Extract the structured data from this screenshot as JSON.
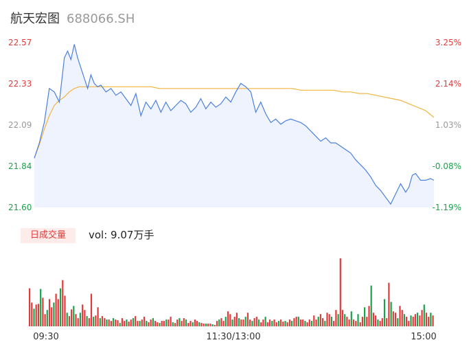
{
  "header": {
    "name": "航天宏图",
    "code": "688066.SH"
  },
  "volume": {
    "badge": "日成交量",
    "text": "vol: 9.07万手"
  },
  "colors": {
    "up": "#e23a3a",
    "down": "#1aa34a",
    "neutral": "#999999",
    "price_line": "#4a7fe0",
    "avg_line": "#f2b33d",
    "area": "#eef3fd"
  },
  "chart_data": [
    {
      "type": "line",
      "title": "",
      "y_ticks": [
        "22.57",
        "22.33",
        "22.09",
        "21.84",
        "21.60"
      ],
      "pct_ticks": [
        "3.25%",
        "2.14%",
        "1.03%",
        "-0.08%",
        "-1.19%"
      ],
      "tick_colors": [
        "up",
        "up",
        "neutral",
        "down",
        "down"
      ],
      "ylim": [
        21.6,
        22.57
      ],
      "x_ticks": [
        "09:30",
        "11:30/13:00",
        "15:00"
      ],
      "xlim": [
        0,
        240
      ],
      "series": [
        {
          "role": "price",
          "x": [
            0,
            3,
            6,
            9,
            12,
            15,
            18,
            20,
            22,
            24,
            26,
            28,
            30,
            32,
            34,
            36,
            38,
            40,
            43,
            46,
            49,
            52,
            55,
            58,
            61,
            64,
            67,
            70,
            73,
            76,
            79,
            82,
            85,
            88,
            91,
            94,
            97,
            100,
            103,
            106,
            109,
            112,
            115,
            118,
            121,
            124,
            127,
            130,
            133,
            136,
            139,
            142,
            145,
            148,
            151,
            154,
            157,
            160,
            163,
            166,
            169,
            172,
            175,
            178,
            181,
            184,
            187,
            190,
            193,
            196,
            199,
            202,
            205,
            208,
            211,
            214,
            217,
            220,
            223,
            225,
            227,
            229,
            232,
            235,
            238,
            240
          ],
          "values": [
            21.89,
            21.98,
            22.1,
            22.3,
            22.28,
            22.22,
            22.48,
            22.52,
            22.47,
            22.56,
            22.48,
            22.42,
            22.36,
            22.3,
            22.38,
            22.33,
            22.31,
            22.32,
            22.28,
            22.3,
            22.26,
            22.28,
            22.24,
            22.2,
            22.27,
            22.14,
            22.22,
            22.18,
            22.23,
            22.16,
            22.22,
            22.17,
            22.2,
            22.23,
            22.21,
            22.16,
            22.19,
            22.24,
            22.18,
            22.22,
            22.19,
            22.21,
            22.25,
            22.22,
            22.28,
            22.33,
            22.31,
            22.28,
            22.16,
            22.22,
            22.15,
            22.1,
            22.12,
            22.09,
            22.11,
            22.12,
            22.11,
            22.1,
            22.08,
            22.05,
            22.02,
            21.99,
            22.01,
            21.98,
            21.98,
            21.96,
            21.94,
            21.92,
            21.88,
            21.85,
            21.82,
            21.78,
            21.73,
            21.7,
            21.66,
            21.62,
            21.68,
            21.74,
            21.69,
            21.72,
            21.79,
            21.8,
            21.76,
            21.76,
            21.77,
            21.76
          ]
        },
        {
          "role": "average",
          "x": [
            0,
            3,
            6,
            9,
            12,
            15,
            18,
            21,
            24,
            27,
            30,
            35,
            40,
            45,
            50,
            55,
            60,
            65,
            70,
            75,
            80,
            85,
            90,
            95,
            100,
            105,
            110,
            115,
            120,
            125,
            130,
            135,
            140,
            145,
            150,
            155,
            160,
            165,
            170,
            175,
            180,
            185,
            190,
            195,
            200,
            205,
            210,
            215,
            220,
            225,
            230,
            235,
            240
          ],
          "values": [
            21.89,
            21.97,
            22.06,
            22.14,
            22.2,
            22.23,
            22.25,
            22.28,
            22.3,
            22.31,
            22.31,
            22.31,
            22.31,
            22.31,
            22.31,
            22.31,
            22.31,
            22.31,
            22.31,
            22.3,
            22.3,
            22.3,
            22.3,
            22.3,
            22.3,
            22.3,
            22.3,
            22.3,
            22.3,
            22.3,
            22.3,
            22.3,
            22.3,
            22.3,
            22.3,
            22.3,
            22.29,
            22.29,
            22.29,
            22.29,
            22.29,
            22.28,
            22.28,
            22.27,
            22.27,
            22.26,
            22.25,
            22.24,
            22.23,
            22.21,
            22.19,
            22.17,
            22.13
          ]
        }
      ],
      "grid": false
    },
    {
      "type": "bar",
      "title": "",
      "xlim": [
        0,
        240
      ],
      "ylim": [
        0,
        100
      ],
      "colors_order": "alternating up/down by tick",
      "values": [
        56,
        35,
        26,
        32,
        33,
        55,
        42,
        18,
        24,
        40,
        28,
        35,
        48,
        40,
        56,
        68,
        45,
        20,
        15,
        25,
        30,
        18,
        12,
        20,
        32,
        24,
        15,
        12,
        48,
        14,
        16,
        28,
        12,
        15,
        12,
        10,
        10,
        8,
        12,
        10,
        9,
        5,
        12,
        8,
        10,
        7,
        10,
        12,
        15,
        8,
        8,
        10,
        14,
        8,
        6,
        10,
        12,
        8,
        6,
        5,
        8,
        8,
        10,
        10,
        14,
        6,
        5,
        10,
        12,
        8,
        12,
        10,
        5,
        8,
        6,
        10,
        8,
        6,
        5,
        4,
        4,
        4,
        4,
        3,
        2,
        8,
        10,
        12,
        8,
        14,
        22,
        18,
        10,
        14,
        20,
        12,
        10,
        10,
        14,
        20,
        10,
        8,
        12,
        14,
        10,
        6,
        10,
        14,
        6,
        10,
        8,
        10,
        6,
        8,
        10,
        7,
        8,
        6,
        10,
        8,
        12,
        14,
        14,
        10,
        10,
        8,
        6,
        10,
        8,
        16,
        10,
        14,
        18,
        12,
        8,
        20,
        18,
        14,
        8,
        24,
        18,
        100,
        24,
        18,
        14,
        10,
        22,
        10,
        8,
        18,
        6,
        14,
        28,
        14,
        30,
        60,
        20,
        16,
        10,
        8,
        12,
        40,
        12,
        64,
        36,
        22,
        20,
        12,
        30,
        24,
        18,
        14,
        8,
        16,
        14,
        18,
        20,
        16,
        24,
        32,
        20,
        14,
        20,
        16
      ]
    }
  ]
}
